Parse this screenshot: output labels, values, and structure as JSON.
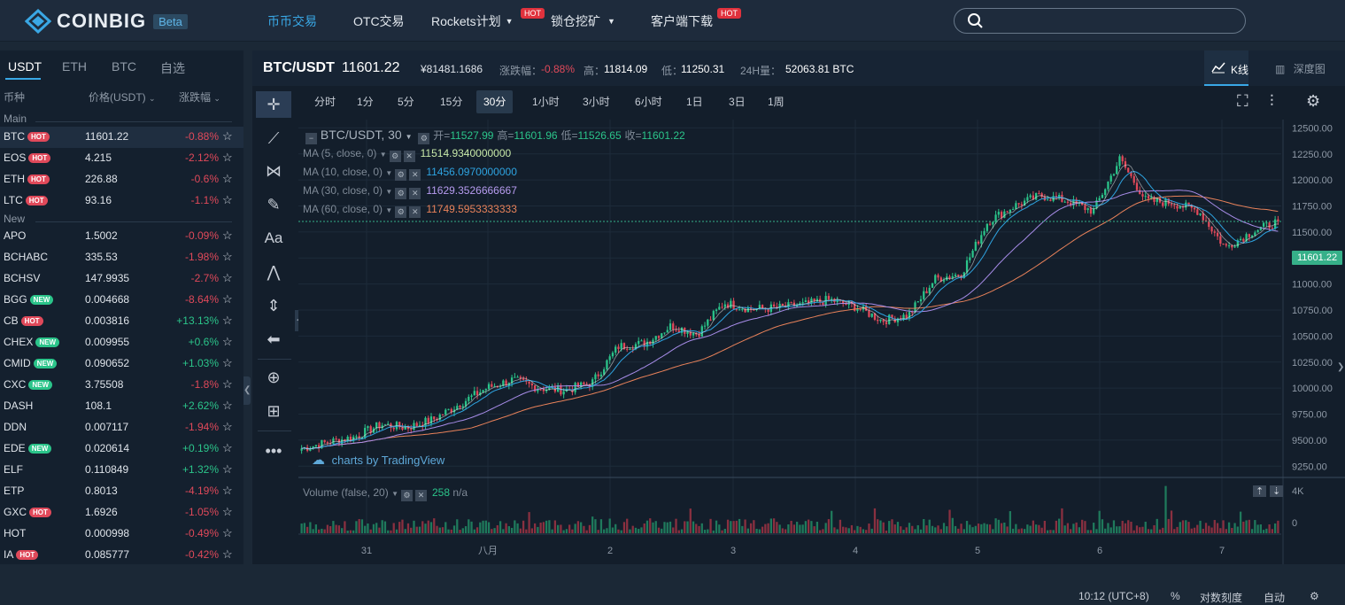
{
  "nav": {
    "logo": "COINBIG",
    "beta": "Beta",
    "items": [
      {
        "label": "币币交易",
        "active": true
      },
      {
        "label": "OTC交易"
      },
      {
        "label": "Rockets计划",
        "hot": "HOT"
      },
      {
        "label": "锁仓挖矿"
      },
      {
        "label": "客户端下载",
        "hot": "HOT"
      }
    ],
    "search_placeholder": ""
  },
  "sidebar": {
    "tabs": [
      "USDT",
      "ETH",
      "BTC",
      "自选"
    ],
    "headers": {
      "coin": "币种",
      "price": "价格(USDT)",
      "change": "涨跌幅"
    },
    "group_main": "Main",
    "group_new": "New",
    "main_rows": [
      {
        "sym": "BTC",
        "badge": "HOT",
        "price": "11601.22",
        "chg": "-0.88%",
        "dir": "neg",
        "selected": true
      },
      {
        "sym": "EOS",
        "badge": "HOT",
        "price": "4.215",
        "chg": "-2.12%",
        "dir": "neg"
      },
      {
        "sym": "ETH",
        "badge": "HOT",
        "price": "226.88",
        "chg": "-0.6%",
        "dir": "neg"
      },
      {
        "sym": "LTC",
        "badge": "HOT",
        "price": "93.16",
        "chg": "-1.1%",
        "dir": "neg"
      }
    ],
    "new_rows": [
      {
        "sym": "APO",
        "badge": "",
        "price": "1.5002",
        "chg": "-0.09%",
        "dir": "neg"
      },
      {
        "sym": "BCHABC",
        "badge": "",
        "price": "335.53",
        "chg": "-1.98%",
        "dir": "neg"
      },
      {
        "sym": "BCHSV",
        "badge": "",
        "price": "147.9935",
        "chg": "-2.7%",
        "dir": "neg"
      },
      {
        "sym": "BGG",
        "badge": "NEW",
        "price": "0.004668",
        "chg": "-8.64%",
        "dir": "neg"
      },
      {
        "sym": "CB",
        "badge": "HOT",
        "price": "0.003816",
        "chg": "+13.13%",
        "dir": "pos"
      },
      {
        "sym": "CHEX",
        "badge": "NEW",
        "price": "0.009955",
        "chg": "+0.6%",
        "dir": "pos"
      },
      {
        "sym": "CMID",
        "badge": "NEW",
        "price": "0.090652",
        "chg": "+1.03%",
        "dir": "pos"
      },
      {
        "sym": "CXC",
        "badge": "NEW",
        "price": "3.75508",
        "chg": "-1.8%",
        "dir": "neg"
      },
      {
        "sym": "DASH",
        "badge": "",
        "price": "108.1",
        "chg": "+2.62%",
        "dir": "pos"
      },
      {
        "sym": "DDN",
        "badge": "",
        "price": "0.007117",
        "chg": "-1.94%",
        "dir": "neg"
      },
      {
        "sym": "EDE",
        "badge": "NEW",
        "price": "0.020614",
        "chg": "+0.19%",
        "dir": "pos"
      },
      {
        "sym": "ELF",
        "badge": "",
        "price": "0.110849",
        "chg": "+1.32%",
        "dir": "pos"
      },
      {
        "sym": "ETP",
        "badge": "",
        "price": "0.8013",
        "chg": "-4.19%",
        "dir": "neg"
      },
      {
        "sym": "GXC",
        "badge": "HOT",
        "price": "1.6926",
        "chg": "-1.05%",
        "dir": "neg"
      },
      {
        "sym": "HOT",
        "badge": "",
        "price": "0.000998",
        "chg": "-0.49%",
        "dir": "neg"
      },
      {
        "sym": "IA",
        "badge": "HOT",
        "price": "0.085777",
        "chg": "-0.42%",
        "dir": "neg"
      }
    ]
  },
  "ticker": {
    "pair": "BTC/USDT",
    "last": "11601.22",
    "cny": "¥81481.1686",
    "chg_label": "涨跌幅：",
    "chg": "-0.88%",
    "high_label": "高：",
    "high": "11814.09",
    "low_label": "低：",
    "low": "11250.31",
    "vol_label": "24H量：",
    "vol": "52063.81 BTC",
    "kline": "K线",
    "depth": "深度图"
  },
  "intervals": [
    "分时",
    "1分",
    "5分",
    "15分",
    "30分",
    "1小时",
    "3小时",
    "6小时",
    "1日",
    "3日",
    "1周"
  ],
  "selected_interval": "30分",
  "legend": {
    "title": "BTC/USDT, 30",
    "open_label": "开=",
    "open": "11527.99",
    "high_label": "高=",
    "high": "11601.96",
    "low_label": "低=",
    "low": "11526.65",
    "close_label": "收=",
    "close": "11601.22",
    "ma5_label": "MA (5, close, 0)",
    "ma5": "11514.9340000000",
    "ma10_label": "MA (10, close, 0)",
    "ma10": "11456.0970000000",
    "ma30_label": "MA (30, close, 0)",
    "ma30": "11629.3526666667",
    "ma60_label": "MA (60, close, 0)",
    "ma60": "11749.5953333333",
    "volume_label": "Volume (false, 20)",
    "volume": "258",
    "volume_na": "n/a"
  },
  "watermark": "charts by TradingView",
  "price_tag": "11601.22",
  "status": {
    "time": "10:12 (UTC+8)",
    "pct": "%",
    "log": "对数刻度",
    "auto": "自动"
  },
  "colors": {
    "up": "#2bc48a",
    "down": "#e0495a",
    "accent": "#39a8e6",
    "ma5": "#e8e8e8",
    "ma10": "#2ea3e0",
    "ma30": "#a78ce8",
    "ma60": "#e9825a"
  },
  "chart_data": {
    "type": "candlestick",
    "y_ticks": [
      "12500.00",
      "12250.00",
      "12000.00",
      "11750.00",
      "11500.00",
      "11250.00",
      "11000.00",
      "10750.00",
      "10500.00",
      "10250.00",
      "10000.00",
      "9750.00",
      "9500.00",
      "9250.00"
    ],
    "ylim": [
      9150,
      12580
    ],
    "x_ticks": [
      "31",
      "八月",
      "2",
      "3",
      "4",
      "5",
      "6",
      "7"
    ],
    "volume_ticks": [
      "4K",
      "0"
    ],
    "close_path": [
      9420,
      9480,
      9530,
      9650,
      9620,
      9700,
      9850,
      10000,
      10080,
      10000,
      9980,
      10050,
      10400,
      10430,
      10600,
      10520,
      10820,
      10760,
      10770,
      10800,
      10850,
      10780,
      10650,
      10700,
      11050,
      11100,
      11600,
      11750,
      11850,
      11800,
      11700,
      12200,
      11800,
      11780,
      11700,
      11350,
      11500,
      11601.22
    ]
  }
}
